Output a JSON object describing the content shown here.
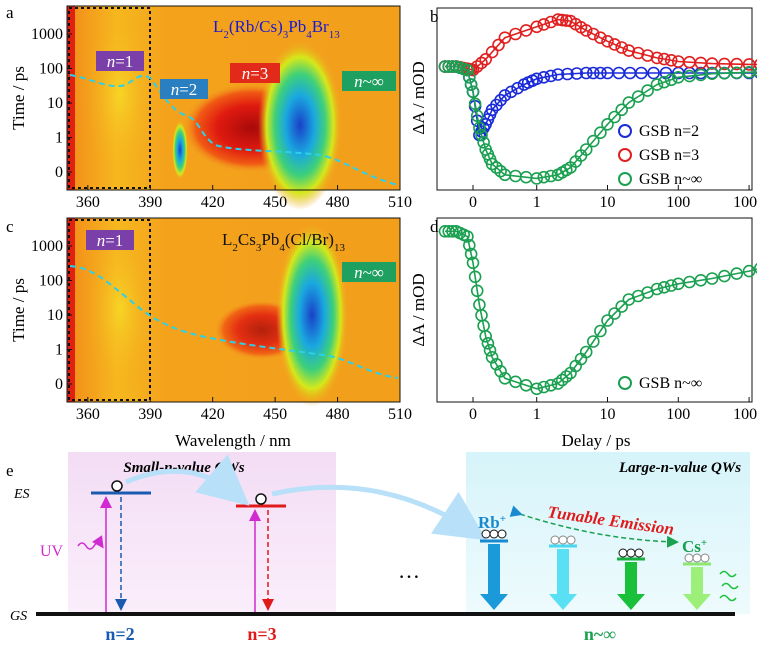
{
  "panel_a": {
    "letter": "a",
    "ylabel": "Time / ps",
    "formula_prefix": "L",
    "formula_sub1": "2",
    "formula_mid": "(Rb/Cs)",
    "formula_sub2": "3",
    "formula_pb": "Pb",
    "formula_sub3": "4",
    "formula_br": "Br",
    "formula_sub4": "13",
    "labels": [
      {
        "n": "n",
        "val": "=1",
        "bg": "#7a3fa8"
      },
      {
        "n": "n",
        "val": "=2",
        "bg": "#2a7fc0"
      },
      {
        "n": "n",
        "val": "=3",
        "bg": "#e12a1a"
      },
      {
        "n": "n",
        "val": "~∞",
        "bg": "#1ea060"
      }
    ]
  },
  "panel_c": {
    "letter": "c",
    "ylabel": "Time / ps",
    "formula_prefix": "L",
    "formula_sub1": "2",
    "formula_mid": "Cs",
    "formula_sub2": "3",
    "formula_pb": "Pb",
    "formula_sub3": "4",
    "formula_br": "(Cl/Br)",
    "formula_sub4": "13",
    "labels": [
      {
        "n": "n",
        "val": "=1",
        "bg": "#7a3fa8"
      },
      {
        "n": "n",
        "val": "~∞",
        "bg": "#1ea060"
      }
    ],
    "xlabel": "Wavelength / nm"
  },
  "panel_b": {
    "letter": "b",
    "ylabel": "ΔA / mOD"
  },
  "panel_d": {
    "letter": "d",
    "ylabel": "ΔA / mOD",
    "xlabel": "Delay / ps"
  },
  "panel_e": {
    "letter": "e",
    "es": "ES",
    "gs": "GS",
    "uv": "UV",
    "small_title": "Small-n-value QWs",
    "large_title": "Large-n-value QWs",
    "tunable": "Tunable Emission",
    "rb": "Rb",
    "cs": "Cs",
    "plus": "+",
    "dots": "…",
    "n2": "n=2",
    "n3": "n=3",
    "ninf": "n~∞"
  },
  "chart_data": [
    {
      "type": "heatmap",
      "panel": "a",
      "ylabel": "Time / ps",
      "x_ticks": [
        360,
        390,
        420,
        450,
        480,
        510
      ],
      "y_ticks": [
        "0",
        "1",
        "10",
        "100",
        "1000"
      ],
      "xlim": [
        350,
        510
      ],
      "ylim": [
        -0.5,
        5000
      ],
      "yscale": "log-like",
      "features": [
        {
          "label": "n=1",
          "wavelength": 370
        },
        {
          "label": "n=2",
          "wavelength": 402
        },
        {
          "label": "n=3",
          "wavelength": 430
        },
        {
          "label": "n~∞",
          "wavelength": 470
        }
      ]
    },
    {
      "type": "heatmap",
      "panel": "c",
      "ylabel": "Time / ps",
      "xlabel": "Wavelength / nm",
      "x_ticks": [
        360,
        390,
        420,
        450,
        480,
        510
      ],
      "y_ticks": [
        "0",
        "1",
        "10",
        "100",
        "1000"
      ],
      "xlim": [
        350,
        510
      ],
      "ylim": [
        -0.5,
        5000
      ],
      "features": [
        {
          "label": "n=1",
          "wavelength": 370
        },
        {
          "label": "n~∞",
          "wavelength": 472
        }
      ]
    },
    {
      "type": "scatter",
      "panel": "b",
      "ylabel": "ΔA / mOD",
      "x_ticks": [
        "0",
        "1",
        "10",
        "100",
        "1000"
      ],
      "xscale": "log-like",
      "legend_position": "bottom-right",
      "series": [
        {
          "name": "GSB n=2",
          "color": "#1a2ad8",
          "x": [
            -0.5,
            -0.3,
            -0.1,
            0,
            0.1,
            0.2,
            0.3,
            0.5,
            0.8,
            1,
            2,
            5,
            10,
            30,
            100,
            300,
            1000,
            3000
          ],
          "y": [
            0.05,
            0.05,
            0.0,
            -0.3,
            -0.9,
            -0.75,
            -0.55,
            -0.35,
            -0.2,
            -0.12,
            -0.06,
            -0.04,
            -0.04,
            -0.04,
            -0.04,
            -0.04,
            -0.04,
            -0.04
          ]
        },
        {
          "name": "GSB n=3",
          "color": "#e02020",
          "x": [
            -0.5,
            -0.3,
            -0.1,
            0,
            0.2,
            0.5,
            1,
            2,
            3,
            5,
            10,
            20,
            50,
            100,
            300,
            1000,
            3000
          ],
          "y": [
            0.05,
            0.05,
            0.02,
            0.0,
            0.15,
            0.45,
            0.6,
            0.7,
            0.68,
            0.55,
            0.4,
            0.27,
            0.17,
            0.12,
            0.09,
            0.08,
            0.08
          ]
        },
        {
          "name": "GSB n~∞",
          "color": "#1aa050",
          "x": [
            -0.5,
            -0.3,
            -0.1,
            0,
            0.1,
            0.2,
            0.3,
            0.5,
            1,
            2,
            3,
            5,
            10,
            20,
            50,
            100,
            300,
            1000,
            3000
          ],
          "y": [
            0.05,
            0.05,
            0.0,
            -0.3,
            -0.8,
            -1.1,
            -1.3,
            -1.45,
            -1.5,
            -1.45,
            -1.35,
            -1.1,
            -0.75,
            -0.45,
            -0.2,
            -0.1,
            -0.05,
            -0.03,
            -0.02
          ]
        }
      ]
    },
    {
      "type": "scatter",
      "panel": "d",
      "ylabel": "ΔA / mOD",
      "xlabel": "Delay / ps",
      "x_ticks": [
        "0",
        "1",
        "10",
        "100",
        "1000"
      ],
      "legend_position": "bottom-right",
      "series": [
        {
          "name": "GSB n~∞",
          "color": "#1aa050",
          "x": [
            -0.5,
            -0.3,
            -0.1,
            0,
            0.1,
            0.2,
            0.3,
            0.5,
            1,
            2,
            3,
            5,
            10,
            20,
            50,
            100,
            300,
            1000,
            3000
          ],
          "y": [
            0.0,
            0.0,
            -0.05,
            -0.3,
            -0.7,
            -1.0,
            -1.2,
            -1.4,
            -1.5,
            -1.45,
            -1.35,
            -1.15,
            -0.85,
            -0.65,
            -0.55,
            -0.5,
            -0.45,
            -0.38,
            -0.3
          ]
        }
      ]
    }
  ]
}
